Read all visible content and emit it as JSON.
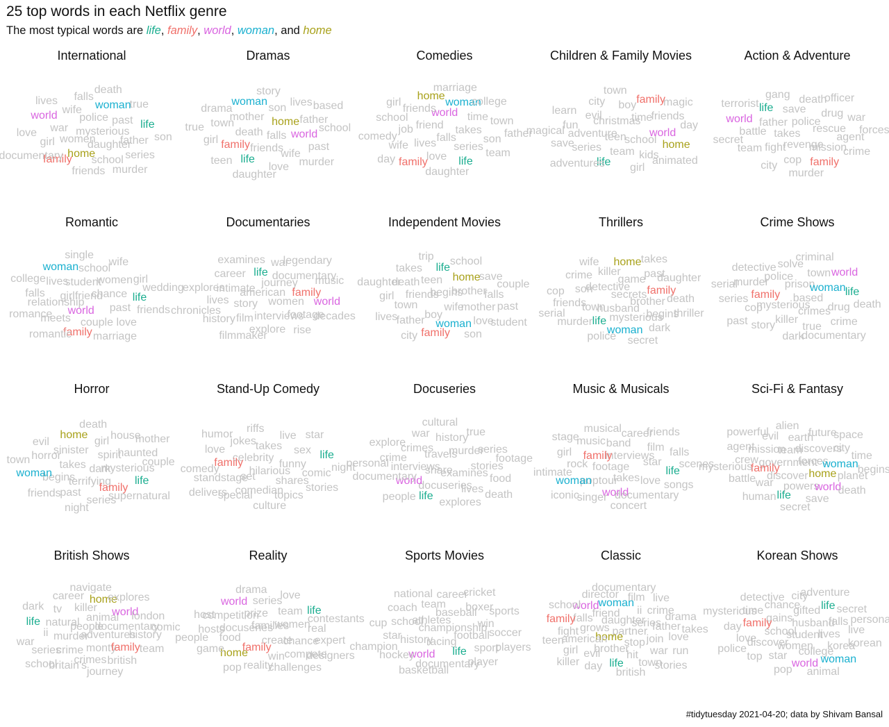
{
  "title": "25 top words in each Netflix genre",
  "subtitle": {
    "prefix": "The most typical words are ",
    "keywords": [
      {
        "word": "life",
        "color": "#1aad8f",
        "sep": ", "
      },
      {
        "word": "family",
        "color": "#f0706a",
        "sep": ", "
      },
      {
        "word": "world",
        "color": "#d965e0",
        "sep": ", "
      },
      {
        "word": "woman",
        "color": "#1ab0cf",
        "sep": ", and "
      },
      {
        "word": "home",
        "color": "#a8a11a",
        "sep": ""
      }
    ]
  },
  "caption": "#tidytuesday 2021-04-20; data by Shivam Bansal",
  "colors": {
    "other": "#c4c4c4",
    "life": "#1aad8f",
    "family": "#f0706a",
    "world": "#d965e0",
    "woman": "#1ab0cf",
    "home": "#a8a11a"
  },
  "chart_data": {
    "type": "wordcloud",
    "panels": [
      {
        "genre": "International",
        "words": [
          "mysterious",
          "women",
          "police",
          "daughter",
          "war",
          "past",
          "home",
          "wife",
          "father",
          "girl",
          "woman",
          "school",
          "world",
          "life",
          "family",
          "falls",
          "series",
          "love",
          "true",
          "friends",
          "lives",
          "son",
          "documentary",
          "death",
          "murder"
        ]
      },
      {
        "genre": "Dramas",
        "words": [
          "falls",
          "death",
          "home",
          "friends",
          "mother",
          "world",
          "family",
          "son",
          "wife",
          "town",
          "father",
          "life",
          "woman",
          "past",
          "girl",
          "lives",
          "love",
          "drama",
          "school",
          "teen",
          "story",
          "murder",
          "true",
          "based",
          "daughter"
        ]
      },
      {
        "genre": "Comedies",
        "words": [
          "falls",
          "friend",
          "takes",
          "lives",
          "world",
          "series",
          "job",
          "time",
          "love",
          "friends",
          "son",
          "wife",
          "woman",
          "life",
          "school",
          "town",
          "family",
          "home",
          "team",
          "comedy",
          "college",
          "daughter",
          "girl",
          "father",
          "day",
          "marriage"
        ]
      },
      {
        "genre": "Children & Family Movies",
        "words": [
          "teen",
          "christmas",
          "school",
          "adventure",
          "time",
          "team",
          "evil",
          "world",
          "series",
          "boy",
          "kids",
          "fun",
          "friends",
          "life",
          "city",
          "home",
          "save",
          "family",
          "girl",
          "learn",
          "day",
          "adventures",
          "town",
          "animated",
          "magical",
          "magic"
        ]
      },
      {
        "genre": "Action & Adventure",
        "words": [
          "takes",
          "police",
          "revenge",
          "father",
          "rescue",
          "fight",
          "save",
          "mission",
          "battle",
          "drug",
          "cop",
          "life",
          "agent",
          "team",
          "death",
          "family",
          "world",
          "war",
          "city",
          "gang",
          "crime",
          "secret",
          "officer",
          "murder",
          "terrorist",
          "forces"
        ]
      },
      {
        "genre": "Romantic",
        "words": [
          "girlfriend",
          "chance",
          "world",
          "student",
          "past",
          "relationship",
          "women",
          "couple",
          "lives",
          "life",
          "meets",
          "school",
          "love",
          "falls",
          "girl",
          "family",
          "woman",
          "friends",
          "romance",
          "wife",
          "marriage",
          "college",
          "wedding",
          "romantic",
          "single"
        ]
      },
      {
        "genre": "Documentaries",
        "words": [
          "american",
          "women",
          "story",
          "journey",
          "interviews",
          "intimate",
          "family",
          "film",
          "life",
          "footage",
          "lives",
          "documentary",
          "explore",
          "career",
          "world",
          "history",
          "war",
          "rise",
          "explores",
          "music",
          "filmmaker",
          "examines",
          "decades",
          "chronicles",
          "legendary"
        ]
      },
      {
        "genre": "Independent Movies",
        "words": [
          "begins",
          "wife",
          "friends",
          "brother",
          "boy",
          "teen",
          "mother",
          "town",
          "home",
          "woman",
          "death",
          "falls",
          "father",
          "life",
          "love",
          "girl",
          "save",
          "family",
          "takes",
          "past",
          "lives",
          "school",
          "son",
          "daughter",
          "couple",
          "city",
          "trip",
          "student"
        ]
      },
      {
        "genre": "Thrillers",
        "words": [
          "secrets",
          "husband",
          "detective",
          "brother",
          "town",
          "game",
          "mysterious",
          "son",
          "family",
          "life",
          "killer",
          "begins",
          "friends",
          "past",
          "woman",
          "crime",
          "death",
          "murder",
          "home",
          "dark",
          "cop",
          "daughter",
          "police",
          "wife",
          "thriller",
          "serial",
          "takes",
          "secret"
        ]
      },
      {
        "genre": "Crime Shows",
        "words": [
          "based",
          "mysterious",
          "prison",
          "crimes",
          "family",
          "woman",
          "killer",
          "police",
          "drug",
          "cop",
          "town",
          "true",
          "murder",
          "life",
          "story",
          "solve",
          "crime",
          "series",
          "world",
          "dark",
          "detective",
          "death",
          "past",
          "criminal",
          "documentary",
          "serial"
        ]
      },
      {
        "genre": "Horror",
        "words": [
          "dark",
          "takes",
          "spirit",
          "terrifying",
          "sinister",
          "mysterious",
          "begins",
          "girl",
          "family",
          "horror",
          "haunted",
          "past",
          "home",
          "life",
          "woman",
          "house",
          "series",
          "evil",
          "couple",
          "friends",
          "death",
          "supernatural",
          "town",
          "mother",
          "night"
        ]
      },
      {
        "genre": "Stand-Up Comedy",
        "words": [
          "hilarious",
          "celebrity",
          "funny",
          "set",
          "takes",
          "shares",
          "family",
          "sex",
          "comedian",
          "jokes",
          "comic",
          "standstage",
          "live",
          "topics",
          "love",
          "life",
          "special",
          "riffs",
          "stories",
          "comedy",
          "star",
          "culture",
          "humor",
          "night",
          "delivers"
        ]
      },
      {
        "genre": "Docuseries",
        "words": [
          "share",
          "travels",
          "examines",
          "interviews",
          "murder",
          "docuseries",
          "crimes",
          "stories",
          "world",
          "history",
          "lives",
          "crime",
          "series",
          "life",
          "war",
          "food",
          "documentary",
          "true",
          "explores",
          "explore",
          "footage",
          "people",
          "cultural",
          "death",
          "personal"
        ]
      },
      {
        "genre": "Music & Musicals",
        "words": [
          "footage",
          "interviews",
          "takes",
          "family",
          "star",
          "poptour",
          "band",
          "love",
          "rock",
          "film",
          "world",
          "music",
          "life",
          "woman",
          "career",
          "documentary",
          "girl",
          "falls",
          "singer",
          "musical",
          "songs",
          "intimate",
          "friends",
          "concert",
          "stage",
          "scenes",
          "iconic"
        ]
      },
      {
        "genre": "Sci-Fi & Fantasy",
        "words": [
          "government",
          "forces",
          "discover",
          "team",
          "home",
          "family",
          "discovers",
          "powers",
          "mission",
          "woman",
          "war",
          "earth",
          "world",
          "crew",
          "city",
          "life",
          "evil",
          "planet",
          "battle",
          "future",
          "save",
          "agent",
          "time",
          "human",
          "alien",
          "death",
          "mysterious",
          "space",
          "secret",
          "powerful",
          "begins"
        ]
      },
      {
        "genre": "British Shows",
        "words": [
          "people",
          "adventures",
          "murder",
          "animal",
          "monty",
          "natural",
          "documentary",
          "crime",
          "killer",
          "family",
          "ii",
          "world",
          "crimes",
          "tv",
          "history",
          "series",
          "home",
          "british",
          "life",
          "london",
          "britain's",
          "career",
          "team",
          "war",
          "explores",
          "journey",
          "dark",
          "comic",
          "school",
          "navigate"
        ]
      },
      {
        "genre": "Reality",
        "words": [
          "families",
          "create",
          "docuseries",
          "women",
          "family",
          "prize",
          "chance",
          "food",
          "team",
          "win",
          "competition",
          "real",
          "home",
          "series",
          "compete",
          "hosts",
          "life",
          "reality",
          "world",
          "expert",
          "game",
          "love",
          "challenges",
          "host",
          "contestants",
          "pop",
          "drama",
          "designers",
          "people"
        ]
      },
      {
        "genre": "Sports Movies",
        "words": [
          "championship",
          "racing",
          "athletes",
          "football",
          "history",
          "baseball",
          "life",
          "school",
          "win",
          "world",
          "team",
          "sport",
          "star",
          "boxer",
          "documentary",
          "coach",
          "soccer",
          "hockey",
          "career",
          "player",
          "cup",
          "sports",
          "basketball",
          "national",
          "players",
          "champion",
          "cricket"
        ]
      },
      {
        "genre": "Classic",
        "words": [
          "partner",
          "home",
          "daughter",
          "stop",
          "grows",
          "series",
          "brother",
          "friend",
          "join",
          "american",
          "ii",
          "hit",
          "falls",
          "father",
          "evil",
          "woman",
          "war",
          "fight",
          "crime",
          "life",
          "world",
          "love",
          "girl",
          "film",
          "town",
          "family",
          "drama",
          "day",
          "director",
          "run",
          "teen",
          "live",
          "british",
          "school",
          "takes",
          "killer",
          "documentary",
          "stories"
        ]
      },
      {
        "genre": "Korean Shows",
        "words": [
          "student",
          "school",
          "husband",
          "women",
          "gains",
          "lives",
          "discover",
          "gifted",
          "college",
          "family",
          "falls",
          "star",
          "chance",
          "korea",
          "love",
          "life",
          "world",
          "time",
          "live",
          "top",
          "city",
          "woman",
          "day",
          "secret",
          "pop",
          "detective",
          "korean",
          "police",
          "adventure",
          "animal",
          "mysterious",
          "personal"
        ]
      }
    ]
  }
}
